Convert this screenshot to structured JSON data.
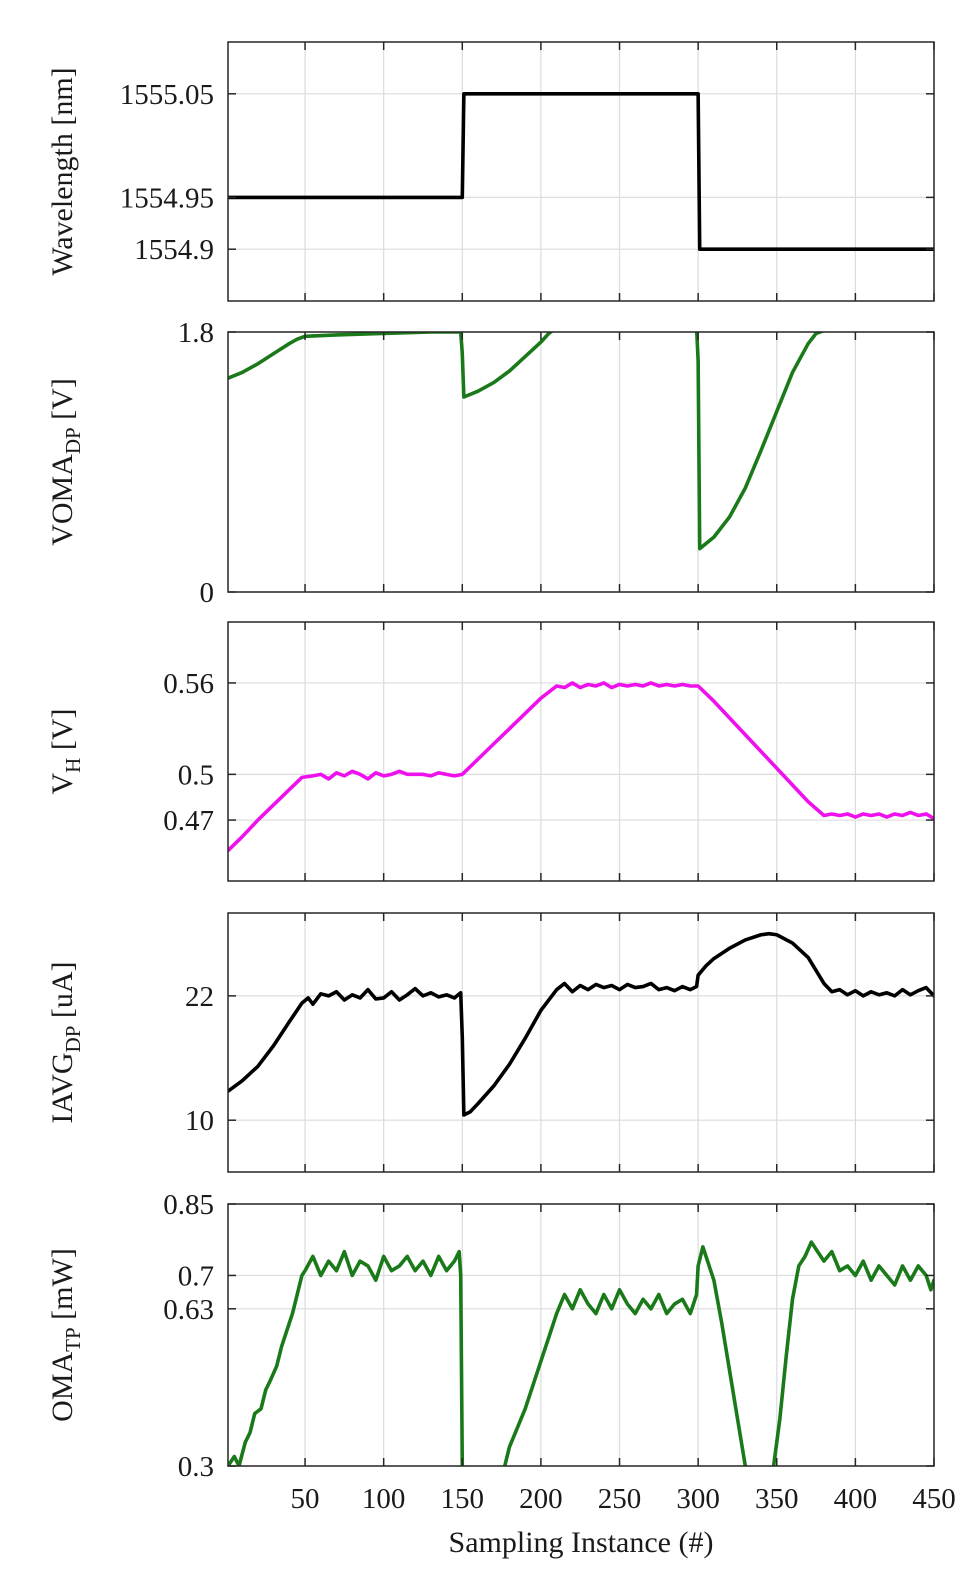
{
  "chart_data": [
    {
      "type": "line",
      "xlabel": "",
      "ylabel": "Wavelength",
      "ylabel_sub": "",
      "ylabel_unit": " [nm]",
      "xlim": [
        1,
        450
      ],
      "ylim": [
        1554.85,
        1555.1
      ],
      "xticks": [
        50,
        100,
        150,
        200,
        250,
        300,
        350,
        400,
        450
      ],
      "xtick_labels_shown": false,
      "yticks": [
        1554.9,
        1554.95,
        1555.05
      ],
      "ytick_labels": [
        "1554.9",
        "1554.95",
        "1555.05"
      ],
      "grid": true,
      "series": [
        {
          "color": "#000000",
          "x": [
            1,
            150,
            151,
            300,
            301,
            450
          ],
          "y": [
            1554.95,
            1554.95,
            1555.05,
            1555.05,
            1554.9,
            1554.9
          ]
        }
      ]
    },
    {
      "type": "line",
      "xlabel": "",
      "ylabel": "VOMA",
      "ylabel_sub": "DP",
      "ylabel_unit": " [V]",
      "xlim": [
        1,
        450
      ],
      "ylim": [
        0,
        1.8
      ],
      "xticks": [
        50,
        100,
        150,
        200,
        250,
        300,
        350,
        400,
        450
      ],
      "xtick_labels_shown": false,
      "yticks": [
        0,
        1.8
      ],
      "ytick_labels": [
        "0",
        "1.8"
      ],
      "grid": true,
      "series": [
        {
          "color": "#1a7a1a",
          "x": [
            1,
            10,
            20,
            30,
            40,
            45,
            50,
            70,
            100,
            130,
            149,
            150,
            151,
            160,
            170,
            180,
            190,
            200,
            205,
            210,
            250,
            280,
            299,
            300,
            301,
            310,
            320,
            330,
            340,
            350,
            360,
            370,
            375,
            380,
            400,
            430,
            450
          ],
          "y": [
            1.48,
            1.52,
            1.58,
            1.65,
            1.72,
            1.75,
            1.77,
            1.78,
            1.79,
            1.8,
            1.8,
            1.65,
            1.35,
            1.39,
            1.45,
            1.53,
            1.63,
            1.73,
            1.79,
            1.83,
            1.84,
            1.84,
            1.83,
            1.6,
            0.3,
            0.38,
            0.52,
            0.72,
            0.98,
            1.25,
            1.52,
            1.72,
            1.79,
            1.81,
            1.81,
            1.81,
            1.82
          ]
        }
      ]
    },
    {
      "type": "line",
      "xlabel": "",
      "ylabel": "V",
      "ylabel_sub": "H",
      "ylabel_unit": " [V]",
      "xlim": [
        1,
        450
      ],
      "ylim": [
        0.43,
        0.6
      ],
      "xticks": [
        50,
        100,
        150,
        200,
        250,
        300,
        350,
        400,
        450
      ],
      "xtick_labels_shown": false,
      "yticks": [
        0.47,
        0.5,
        0.56
      ],
      "ytick_labels": [
        "0.47",
        "0.5",
        "0.56"
      ],
      "grid": true,
      "series": [
        {
          "color": "#ee11ee",
          "x": [
            1,
            10,
            20,
            30,
            40,
            48,
            55,
            60,
            65,
            70,
            75,
            80,
            85,
            90,
            95,
            100,
            105,
            110,
            115,
            120,
            125,
            130,
            135,
            140,
            145,
            150,
            160,
            170,
            180,
            190,
            200,
            210,
            215,
            220,
            225,
            230,
            235,
            240,
            245,
            250,
            255,
            260,
            265,
            270,
            275,
            280,
            285,
            290,
            295,
            300,
            310,
            320,
            330,
            340,
            350,
            360,
            370,
            380,
            385,
            390,
            395,
            400,
            405,
            410,
            415,
            420,
            425,
            430,
            435,
            440,
            445,
            450
          ],
          "y": [
            0.45,
            0.459,
            0.47,
            0.48,
            0.49,
            0.498,
            0.499,
            0.5,
            0.497,
            0.501,
            0.499,
            0.502,
            0.5,
            0.497,
            0.501,
            0.499,
            0.5,
            0.502,
            0.5,
            0.5,
            0.5,
            0.499,
            0.501,
            0.5,
            0.499,
            0.5,
            0.51,
            0.52,
            0.53,
            0.54,
            0.55,
            0.558,
            0.557,
            0.56,
            0.557,
            0.559,
            0.558,
            0.56,
            0.557,
            0.559,
            0.558,
            0.559,
            0.558,
            0.56,
            0.558,
            0.559,
            0.558,
            0.559,
            0.558,
            0.558,
            0.548,
            0.537,
            0.526,
            0.515,
            0.504,
            0.493,
            0.482,
            0.473,
            0.474,
            0.473,
            0.474,
            0.472,
            0.474,
            0.473,
            0.474,
            0.472,
            0.474,
            0.473,
            0.475,
            0.473,
            0.474,
            0.471
          ]
        }
      ]
    },
    {
      "type": "line",
      "xlabel": "",
      "ylabel": "IAVG",
      "ylabel_sub": "DP",
      "ylabel_unit": " [uA]",
      "xlim": [
        1,
        450
      ],
      "ylim": [
        5,
        30
      ],
      "xticks": [
        50,
        100,
        150,
        200,
        250,
        300,
        350,
        400,
        450
      ],
      "xtick_labels_shown": false,
      "yticks": [
        10,
        22
      ],
      "ytick_labels": [
        "10",
        "22"
      ],
      "grid": true,
      "series": [
        {
          "color": "#000000",
          "x": [
            1,
            10,
            20,
            30,
            40,
            48,
            52,
            55,
            60,
            65,
            70,
            75,
            80,
            85,
            90,
            95,
            100,
            105,
            110,
            115,
            120,
            125,
            130,
            135,
            140,
            145,
            149,
            150,
            151,
            155,
            160,
            170,
            180,
            190,
            200,
            210,
            215,
            220,
            225,
            230,
            235,
            240,
            245,
            250,
            255,
            260,
            265,
            270,
            275,
            280,
            285,
            290,
            295,
            299,
            300,
            305,
            310,
            320,
            330,
            340,
            345,
            350,
            360,
            370,
            380,
            385,
            390,
            395,
            400,
            405,
            410,
            415,
            420,
            425,
            430,
            435,
            440,
            445,
            450
          ],
          "y": [
            12.8,
            13.8,
            15.2,
            17.2,
            19.5,
            21.3,
            21.8,
            21.2,
            22.2,
            22.0,
            22.4,
            21.6,
            22.1,
            21.8,
            22.6,
            21.7,
            21.8,
            22.4,
            21.6,
            22.1,
            22.7,
            22.0,
            22.3,
            21.9,
            22.1,
            21.8,
            22.3,
            18.0,
            10.5,
            10.8,
            11.6,
            13.3,
            15.4,
            17.9,
            20.6,
            22.6,
            23.2,
            22.4,
            23.0,
            22.6,
            23.1,
            22.8,
            23.0,
            22.6,
            23.1,
            22.8,
            22.9,
            23.2,
            22.6,
            22.8,
            22.5,
            22.9,
            22.6,
            22.9,
            24.0,
            24.9,
            25.6,
            26.6,
            27.4,
            27.9,
            28.0,
            27.9,
            27.1,
            25.7,
            23.2,
            22.4,
            22.6,
            22.1,
            22.5,
            22.0,
            22.4,
            22.1,
            22.3,
            22.0,
            22.6,
            22.1,
            22.5,
            22.8,
            22.0
          ]
        }
      ]
    },
    {
      "type": "line",
      "xlabel": "Sampling Instance (#)",
      "ylabel": "OMA",
      "ylabel_sub": "TP",
      "ylabel_unit": " [mW]",
      "xlim": [
        1,
        450
      ],
      "ylim": [
        0.3,
        0.85
      ],
      "xticks": [
        50,
        100,
        150,
        200,
        250,
        300,
        350,
        400,
        450
      ],
      "xtick_labels": [
        "50",
        "100",
        "150",
        "200",
        "250",
        "300",
        "350",
        "400",
        "450"
      ],
      "xtick_labels_shown": true,
      "yticks": [
        0.3,
        0.63,
        0.7,
        0.85
      ],
      "ytick_labels": [
        "0.3",
        "0.63",
        "0.7",
        "0.85"
      ],
      "grid": true,
      "series": [
        {
          "color": "#1a7a1a",
          "x": [
            1,
            5,
            8,
            12,
            15,
            18,
            22,
            25,
            28,
            32,
            35,
            38,
            42,
            45,
            48,
            50,
            55,
            60,
            65,
            70,
            75,
            80,
            85,
            90,
            95,
            100,
            105,
            110,
            115,
            120,
            125,
            130,
            135,
            140,
            145,
            148,
            149,
            150
          ],
          "y": [
            0.3,
            0.32,
            0.3,
            0.35,
            0.37,
            0.41,
            0.42,
            0.46,
            0.48,
            0.51,
            0.55,
            0.58,
            0.62,
            0.66,
            0.7,
            0.71,
            0.74,
            0.7,
            0.73,
            0.71,
            0.75,
            0.7,
            0.73,
            0.72,
            0.69,
            0.74,
            0.71,
            0.72,
            0.74,
            0.71,
            0.73,
            0.7,
            0.74,
            0.71,
            0.73,
            0.75,
            0.7,
            0.3
          ]
        },
        {
          "color": "#1a7a1a",
          "x": [
            177,
            180,
            185,
            190,
            195,
            200,
            205,
            210,
            215,
            220,
            225,
            230,
            235,
            240,
            245,
            250,
            255,
            260,
            265,
            270,
            275,
            280,
            285,
            290,
            295,
            299,
            300,
            303,
            307,
            310,
            315,
            320,
            325,
            330
          ],
          "y": [
            0.3,
            0.34,
            0.38,
            0.42,
            0.47,
            0.52,
            0.57,
            0.62,
            0.66,
            0.63,
            0.67,
            0.64,
            0.62,
            0.66,
            0.63,
            0.67,
            0.64,
            0.62,
            0.65,
            0.63,
            0.66,
            0.62,
            0.64,
            0.65,
            0.62,
            0.66,
            0.72,
            0.76,
            0.72,
            0.69,
            0.6,
            0.5,
            0.4,
            0.3
          ]
        },
        {
          "color": "#1a7a1a",
          "x": [
            348,
            352,
            356,
            360,
            364,
            368,
            372,
            376,
            380,
            385,
            390,
            395,
            400,
            405,
            410,
            415,
            420,
            425,
            430,
            435,
            440,
            445,
            448,
            450
          ],
          "y": [
            0.3,
            0.4,
            0.53,
            0.65,
            0.72,
            0.74,
            0.77,
            0.75,
            0.73,
            0.75,
            0.71,
            0.72,
            0.7,
            0.73,
            0.69,
            0.72,
            0.7,
            0.68,
            0.72,
            0.69,
            0.72,
            0.7,
            0.67,
            0.69
          ]
        }
      ]
    }
  ]
}
